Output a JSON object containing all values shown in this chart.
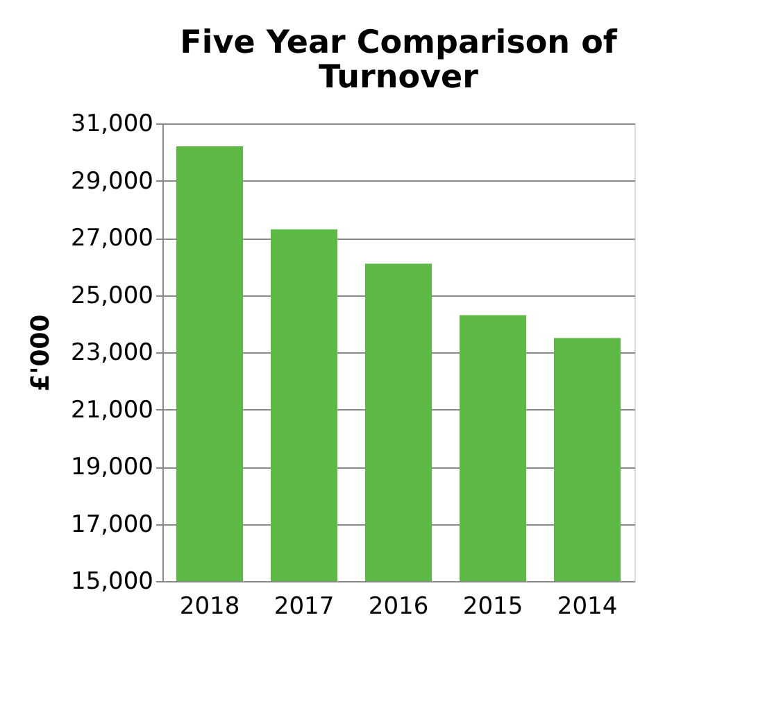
{
  "chart_data": {
    "type": "bar",
    "title": "Five Year Comparison of Turnover",
    "ylabel": "£'000",
    "categories": [
      "2018",
      "2017",
      "2016",
      "2015",
      "2014"
    ],
    "values": [
      30200,
      27300,
      26100,
      24300,
      23500
    ],
    "color": "#5cb946",
    "ylim": [
      15000,
      31000
    ],
    "yticks": [
      {
        "value": 15000,
        "label": "15,000"
      },
      {
        "value": 17000,
        "label": "17,000"
      },
      {
        "value": 19000,
        "label": "19,000"
      },
      {
        "value": 21000,
        "label": "21,000"
      },
      {
        "value": 23000,
        "label": "23,000"
      },
      {
        "value": 25000,
        "label": "25,000"
      },
      {
        "value": 27000,
        "label": "27,000"
      },
      {
        "value": 29000,
        "label": "29,000"
      },
      {
        "value": 31000,
        "label": "31,000"
      }
    ],
    "grid": "y"
  }
}
